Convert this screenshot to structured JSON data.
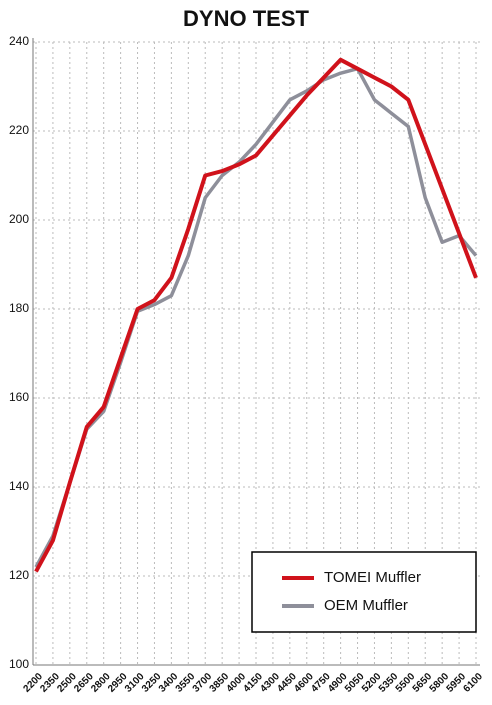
{
  "chart_data": {
    "type": "line",
    "title": "DYNO TEST",
    "categories": [
      "2200",
      "2350",
      "2500",
      "2650",
      "2800",
      "2950",
      "3100",
      "3250",
      "3400",
      "3550",
      "3700",
      "3850",
      "4000",
      "4150",
      "4300",
      "4450",
      "4600",
      "4750",
      "4900",
      "5050",
      "5200",
      "5350",
      "5500",
      "5650",
      "5800",
      "5950",
      "6100"
    ],
    "series": [
      {
        "name": "TOMEI Muffler",
        "color": "#d0121b",
        "values": [
          121,
          128,
          141,
          153.5,
          158,
          169,
          180,
          182,
          187,
          198,
          210,
          211,
          212.5,
          214.5,
          219,
          223.5,
          228,
          232,
          236,
          234,
          232,
          230,
          227,
          217,
          207,
          197,
          187
        ]
      },
      {
        "name": "OEM Muffler",
        "color": "#8e8f9a",
        "values": [
          122,
          129,
          141,
          153,
          157,
          168,
          179.5,
          181,
          183,
          192,
          205,
          210,
          213,
          217,
          222,
          227,
          229,
          231.5,
          233,
          234,
          227,
          224,
          221,
          205,
          195,
          196.5,
          192
        ]
      }
    ],
    "ylim": [
      100,
      240
    ],
    "yticks": [
      100,
      120,
      140,
      160,
      180,
      200,
      220,
      240
    ],
    "grid": true,
    "legend": "lower-right"
  }
}
